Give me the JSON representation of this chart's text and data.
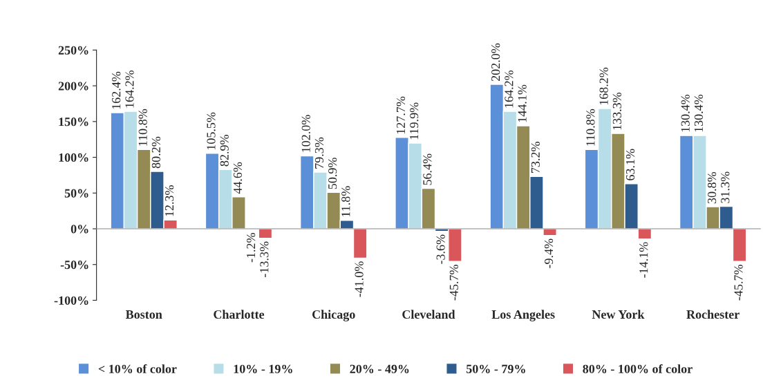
{
  "chart_data": {
    "type": "bar",
    "categories": [
      "Boston",
      "Charlotte",
      "Chicago",
      "Cleveland",
      "Los Angeles",
      "New York",
      "Rochester"
    ],
    "series": [
      {
        "name": "< 10% of color",
        "color": "#5b8fd8",
        "values": [
          162.4,
          105.5,
          102.0,
          127.7,
          202.0,
          110.8,
          130.4
        ],
        "value_labels": [
          "162.4%",
          "105.5%",
          "102.0%",
          "127.7%",
          "202.0%",
          "110.8%",
          "130.4%"
        ]
      },
      {
        "name": "10% - 19%",
        "color": "#b7dee8",
        "values": [
          164.2,
          82.9,
          79.3,
          119.9,
          164.2,
          168.2,
          130.4
        ],
        "value_labels": [
          "164.2%",
          "82.9%",
          "79.3%",
          "119.9%",
          "164.2%",
          "168.2%",
          "130.4%"
        ]
      },
      {
        "name": "20% - 49%",
        "color": "#948a54",
        "values": [
          110.8,
          44.6,
          50.9,
          56.4,
          144.1,
          133.3,
          30.8
        ],
        "value_labels": [
          "110.8%",
          "44.6%",
          "50.9%",
          "56.4%",
          "144.1%",
          "133.3%",
          "30.8%"
        ]
      },
      {
        "name": "50% - 79%",
        "color": "#2e5c8f",
        "values": [
          80.2,
          -1.2,
          11.8,
          -3.6,
          73.2,
          63.1,
          31.3
        ],
        "value_labels": [
          "80.2%",
          "-1.2%",
          "11.8%",
          "-3.6%",
          "73.2%",
          "63.1%",
          "31.3%"
        ]
      },
      {
        "name": "80% - 100% of color",
        "color": "#d9575a",
        "values": [
          12.3,
          -13.3,
          -41.0,
          -45.7,
          -9.4,
          -14.1,
          -45.7
        ],
        "value_labels": [
          "12.3%",
          "-13.3%",
          "-41.0%",
          "-45.7%",
          "-9.4%",
          "-14.1%",
          "-45.7%"
        ]
      }
    ],
    "ylim": [
      -100,
      250
    ],
    "yticks": [
      {
        "value": -100,
        "label": "-100%"
      },
      {
        "value": -50,
        "label": "-50%"
      },
      {
        "value": 0,
        "label": "0%"
      },
      {
        "value": 50,
        "label": "50%"
      },
      {
        "value": 100,
        "label": "100%"
      },
      {
        "value": 150,
        "label": "150%"
      },
      {
        "value": 200,
        "label": "200%"
      },
      {
        "value": 250,
        "label": "250%"
      }
    ],
    "legend": "bottom"
  }
}
